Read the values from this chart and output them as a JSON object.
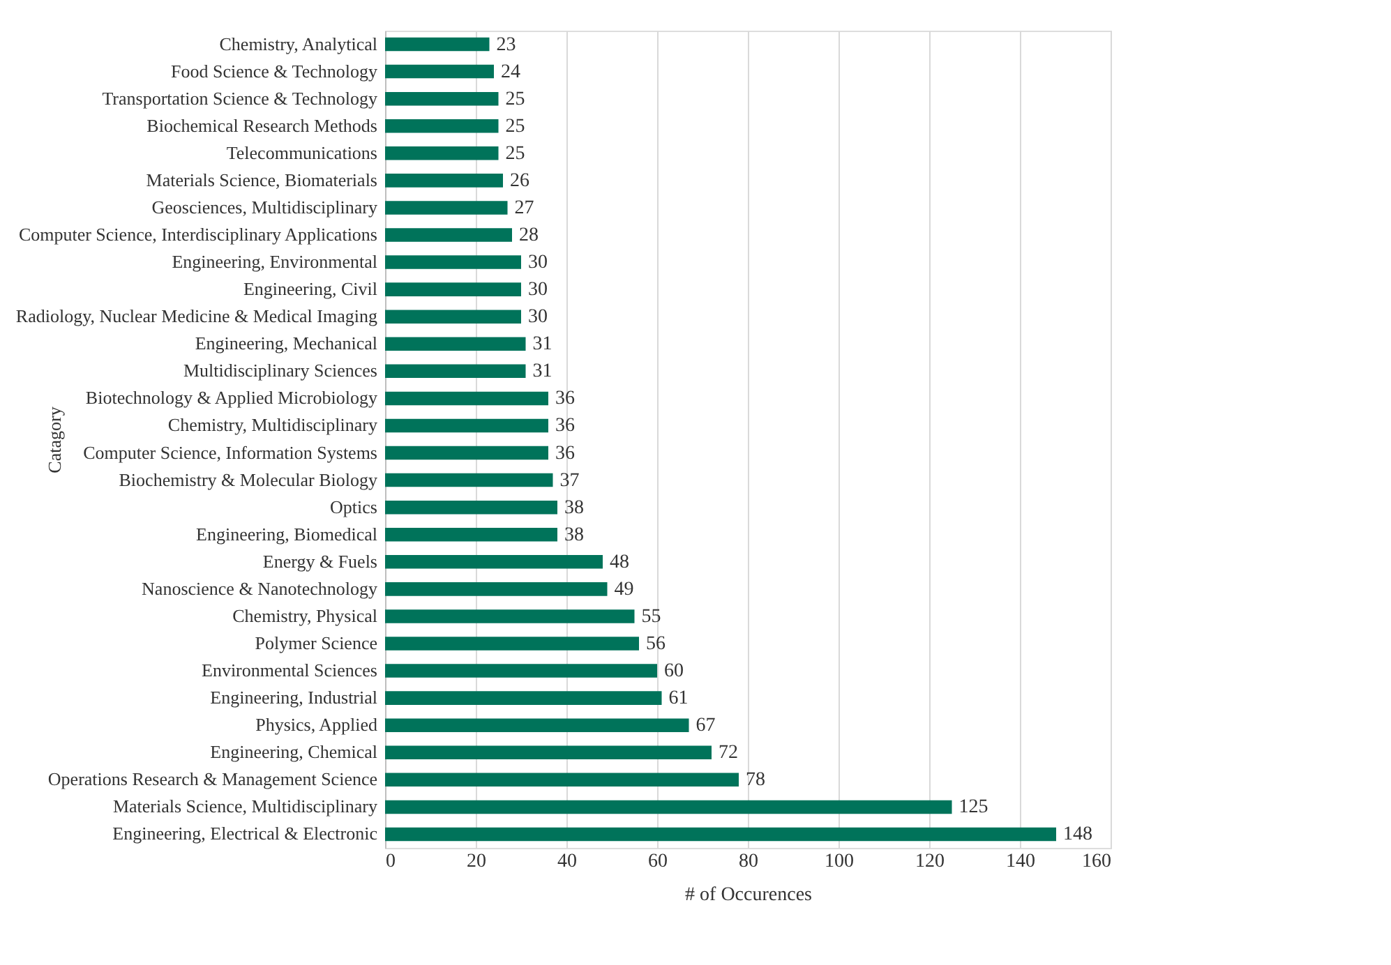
{
  "chart_data": {
    "type": "bar",
    "orientation": "horizontal",
    "xlabel": "# of Occurences",
    "ylabel": "Catagory",
    "categories": [
      "Chemistry, Analytical",
      "Food Science & Technology",
      "Transportation Science & Technology",
      "Biochemical Research Methods",
      "Telecommunications",
      "Materials Science, Biomaterials",
      "Geosciences, Multidisciplinary",
      "Computer Science, Interdisciplinary Applications",
      "Engineering, Environmental",
      "Engineering, Civil",
      "Radiology, Nuclear Medicine & Medical Imaging",
      "Engineering, Mechanical",
      "Multidisciplinary Sciences",
      "Biotechnology & Applied Microbiology",
      "Chemistry, Multidisciplinary",
      "Computer Science, Information Systems",
      "Biochemistry & Molecular Biology",
      "Optics",
      "Engineering, Biomedical",
      "Energy & Fuels",
      "Nanoscience & Nanotechnology",
      "Chemistry, Physical",
      "Polymer Science",
      "Environmental Sciences",
      "Engineering, Industrial",
      "Physics, Applied",
      "Engineering, Chemical",
      "Operations Research & Management Science",
      "Materials Science, Multidisciplinary",
      "Engineering, Electrical & Electronic"
    ],
    "values": [
      23,
      24,
      25,
      25,
      25,
      26,
      27,
      28,
      30,
      30,
      30,
      31,
      31,
      36,
      36,
      36,
      37,
      38,
      38,
      48,
      49,
      55,
      56,
      60,
      61,
      67,
      72,
      78,
      125,
      148
    ],
    "color": "#00735a",
    "xlim": [
      0,
      160
    ],
    "xticks": [
      0,
      20,
      40,
      60,
      80,
      100,
      120,
      140,
      160
    ],
    "grid": "x",
    "data_labels": true
  }
}
